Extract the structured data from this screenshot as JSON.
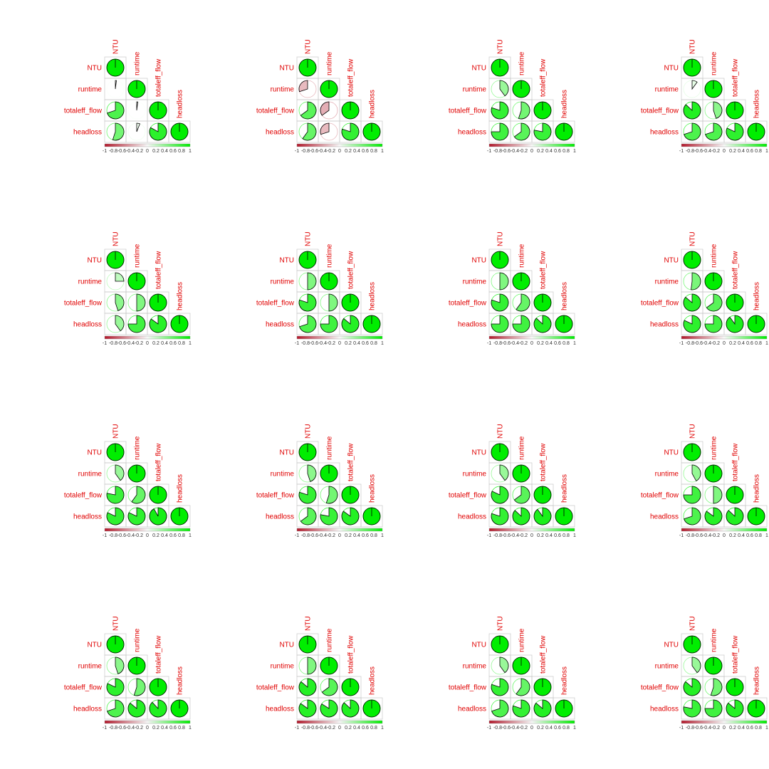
{
  "chart_data": {
    "type": "heatmap",
    "layout": "4x4 grid of lower-triangular correlation pie plots",
    "variables": [
      "NTU",
      "runtime",
      "totaleff_flow",
      "headloss"
    ],
    "colorbar_ticks": [
      "-1",
      "-0.8",
      "-0.6",
      "-0.4",
      "-0.2",
      "0",
      "0.2",
      "0.4",
      "0.6",
      "0.8",
      "1"
    ],
    "value_range": [
      -1,
      1
    ],
    "colors": {
      "negative": "#b2182b",
      "positive": "#00ee00",
      "label": "#e00000",
      "box": "#c8c8c8",
      "colorbar_mid": "#f7f7f7"
    },
    "panels": [
      {
        "r_runtime_NTU": 0.02,
        "r_totaleff_NTU": 0.7,
        "r_totaleff_runtime": 0.02,
        "r_headloss_NTU": 0.55,
        "r_headloss_runtime": 0.06,
        "r_headloss_totaleff": 0.83
      },
      {
        "r_runtime_NTU": -0.3,
        "r_totaleff_NTU": 0.65,
        "r_totaleff_runtime": -0.35,
        "r_headloss_NTU": 0.6,
        "r_headloss_runtime": -0.3,
        "r_headloss_totaleff": 0.8
      },
      {
        "r_runtime_NTU": 0.4,
        "r_totaleff_NTU": 0.8,
        "r_totaleff_runtime": 0.55,
        "r_headloss_NTU": 0.75,
        "r_headloss_runtime": 0.65,
        "r_headloss_totaleff": 0.78
      },
      {
        "r_runtime_NTU": 0.1,
        "r_totaleff_NTU": 0.87,
        "r_totaleff_runtime": 0.45,
        "r_headloss_NTU": 0.7,
        "r_headloss_runtime": 0.7,
        "r_headloss_totaleff": 0.82
      },
      {
        "r_runtime_NTU": 0.25,
        "r_totaleff_NTU": 0.45,
        "r_totaleff_runtime": 0.5,
        "r_headloss_NTU": 0.4,
        "r_headloss_runtime": 0.75,
        "r_headloss_totaleff": 0.85
      },
      {
        "r_runtime_NTU": 0.5,
        "r_totaleff_NTU": 0.8,
        "r_totaleff_runtime": 0.5,
        "r_headloss_NTU": 0.7,
        "r_headloss_runtime": 0.75,
        "r_headloss_totaleff": 0.86
      },
      {
        "r_runtime_NTU": 0.5,
        "r_totaleff_NTU": 0.8,
        "r_totaleff_runtime": 0.6,
        "r_headloss_NTU": 0.75,
        "r_headloss_runtime": 0.75,
        "r_headloss_totaleff": 0.87
      },
      {
        "r_runtime_NTU": 0.52,
        "r_totaleff_NTU": 0.86,
        "r_totaleff_runtime": 0.65,
        "r_headloss_NTU": 0.82,
        "r_headloss_runtime": 0.75,
        "r_headloss_totaleff": 0.9
      },
      {
        "r_runtime_NTU": 0.4,
        "r_totaleff_NTU": 0.78,
        "r_totaleff_runtime": 0.6,
        "r_headloss_NTU": 0.82,
        "r_headloss_runtime": 0.82,
        "r_headloss_totaleff": 0.92
      },
      {
        "r_runtime_NTU": 0.45,
        "r_totaleff_NTU": 0.8,
        "r_totaleff_runtime": 0.55,
        "r_headloss_NTU": 0.65,
        "r_headloss_runtime": 0.78,
        "r_headloss_totaleff": 0.85
      },
      {
        "r_runtime_NTU": 0.4,
        "r_totaleff_NTU": 0.82,
        "r_totaleff_runtime": 0.65,
        "r_headloss_NTU": 0.8,
        "r_headloss_runtime": 0.87,
        "r_headloss_totaleff": 0.9
      },
      {
        "r_runtime_NTU": 0.42,
        "r_totaleff_NTU": 0.75,
        "r_totaleff_runtime": 0.5,
        "r_headloss_NTU": 0.7,
        "r_headloss_runtime": 0.85,
        "r_headloss_totaleff": 0.87
      },
      {
        "r_runtime_NTU": 0.45,
        "r_totaleff_NTU": 0.82,
        "r_totaleff_runtime": 0.55,
        "r_headloss_NTU": 0.7,
        "r_headloss_runtime": 0.86,
        "r_headloss_totaleff": 0.88
      },
      {
        "r_runtime_NTU": 0.5,
        "r_totaleff_NTU": 0.86,
        "r_totaleff_runtime": 0.65,
        "r_headloss_NTU": 0.85,
        "r_headloss_runtime": 0.84,
        "r_headloss_totaleff": 0.87
      },
      {
        "r_runtime_NTU": 0.4,
        "r_totaleff_NTU": 0.8,
        "r_totaleff_runtime": 0.6,
        "r_headloss_NTU": 0.7,
        "r_headloss_runtime": 0.8,
        "r_headloss_totaleff": 0.86
      },
      {
        "r_runtime_NTU": 0.4,
        "r_totaleff_NTU": 0.86,
        "r_totaleff_runtime": 0.55,
        "r_headloss_NTU": 0.78,
        "r_headloss_runtime": 0.75,
        "r_headloss_totaleff": 0.86
      }
    ]
  }
}
